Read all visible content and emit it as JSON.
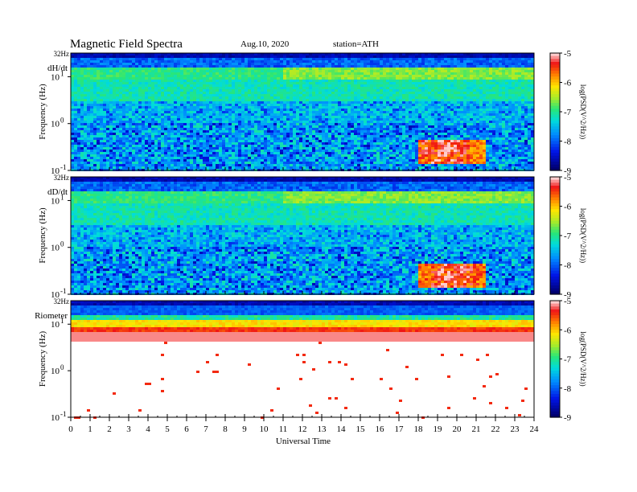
{
  "header": {
    "title": "Magnetic  Field  Spectra",
    "date": "Aug.10, 2020",
    "station": "station=ATH"
  },
  "chart_data": [
    {
      "type": "heatmap",
      "panel_label": "dH/dt",
      "ylabel": "Frequency  (Hz)",
      "top_label": "32Hz",
      "y_scale": "log",
      "y_ticks": [
        {
          "base": "10",
          "exp": "1"
        },
        {
          "base": "10",
          "exp": "0"
        },
        {
          "base": "10",
          "exp": "-1"
        }
      ],
      "x": [
        0,
        24
      ],
      "colorbar": {
        "label": "log(PSD(V^2/Hz))",
        "ticks": [
          "-5",
          "-6",
          "-7",
          "-8",
          "-9"
        ],
        "range": [
          -9,
          -5
        ]
      },
      "features": [
        {
          "name": "low-frequency enhancement",
          "start": 18.0,
          "end": 21.5,
          "peak": 19.3
        }
      ]
    },
    {
      "type": "heatmap",
      "panel_label": "dD/dt",
      "ylabel": "Frequency  (Hz)",
      "top_label": "32Hz",
      "y_scale": "log",
      "y_ticks": [
        {
          "base": "10",
          "exp": "1"
        },
        {
          "base": "10",
          "exp": "0"
        },
        {
          "base": "10",
          "exp": "-1"
        }
      ],
      "x": [
        0,
        24
      ],
      "colorbar": {
        "label": "log(PSD(V^2/Hz))",
        "ticks": [
          "-5",
          "-6",
          "-7",
          "-8",
          "-9"
        ],
        "range": [
          -9,
          -5
        ]
      },
      "features": [
        {
          "name": "low-frequency enhancement",
          "start": 18.0,
          "end": 21.5,
          "peak": 19.7
        }
      ]
    },
    {
      "type": "heatmap",
      "panel_label": "Riometer",
      "ylabel": "Frequency  (Hz)",
      "top_label": "32Hz",
      "y_scale": "log",
      "y_ticks": [
        {
          "base": "10",
          "exp": "1"
        },
        {
          "base": "10",
          "exp": "0"
        },
        {
          "base": "10",
          "exp": "-1"
        }
      ],
      "x": [
        0,
        24
      ],
      "colorbar": {
        "label": "log(PSD(V^2/Hz))",
        "ticks": [
          "-5",
          "-6",
          "-7",
          "-8",
          "-9"
        ],
        "range": [
          -9,
          -5
        ]
      },
      "features": []
    }
  ],
  "xaxis": {
    "label": "Universal Time",
    "ticks": [
      "0",
      "1",
      "2",
      "3",
      "4",
      "5",
      "6",
      "7",
      "8",
      "9",
      "10",
      "11",
      "12",
      "13",
      "14",
      "15",
      "16",
      "17",
      "18",
      "19",
      "20",
      "21",
      "22",
      "23",
      "24"
    ],
    "range": [
      0,
      24
    ]
  }
}
